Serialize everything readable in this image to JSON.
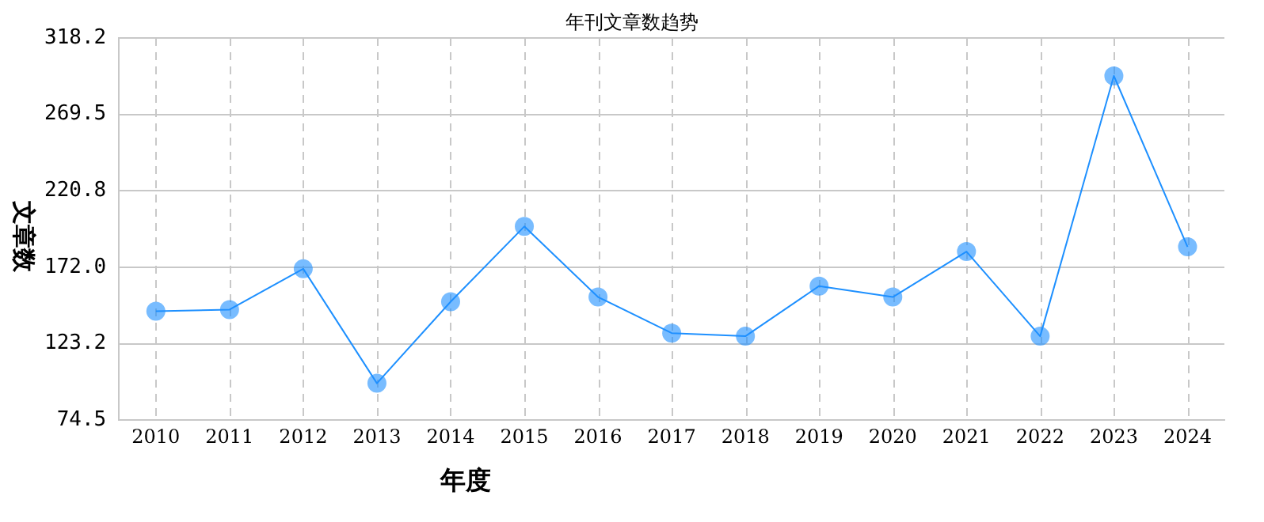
{
  "chart_data": {
    "type": "line",
    "title": "年刊文章数趋势",
    "xlabel": "年度",
    "ylabel": "文章数",
    "categories": [
      "2010",
      "2011",
      "2012",
      "2013",
      "2014",
      "2015",
      "2016",
      "2017",
      "2018",
      "2019",
      "2020",
      "2021",
      "2022",
      "2023",
      "2024"
    ],
    "series": [
      {
        "color": "#1e90ff",
        "values": [
          144,
          145,
          171,
          98,
          150,
          198,
          153,
          130,
          128,
          160,
          153,
          182,
          128,
          294,
          185
        ]
      }
    ],
    "ylim": [
      74.5,
      318.2
    ],
    "yticks": [
      {
        "value": 74.5,
        "label": "74.5"
      },
      {
        "value": 123.2,
        "label": "123.2"
      },
      {
        "value": 172.0,
        "label": "172.0"
      },
      {
        "value": 220.8,
        "label": "220.8"
      },
      {
        "value": 269.5,
        "label": "269.5"
      },
      {
        "value": 318.2,
        "label": "318.2"
      }
    ],
    "grid": true,
    "legend": false,
    "marker": "circle",
    "line_style": "solid"
  }
}
